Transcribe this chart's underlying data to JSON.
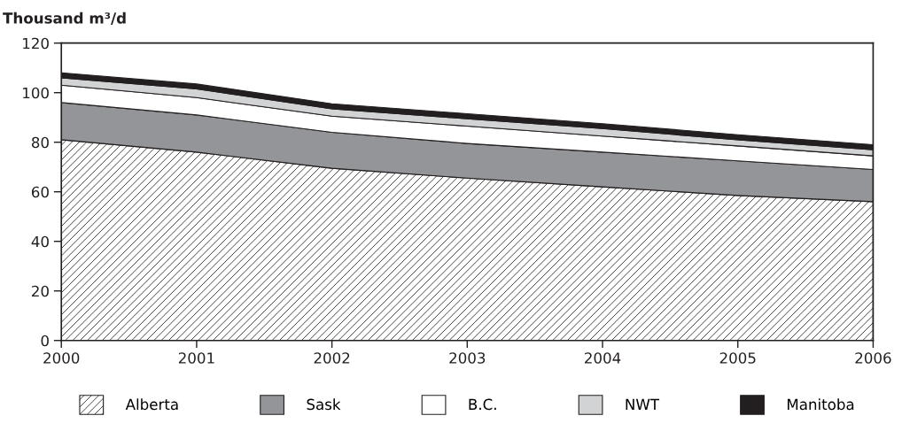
{
  "chart_data": {
    "type": "area",
    "stacked": true,
    "ylabel": "Thousand m³/d",
    "x": [
      2000,
      2001,
      2002,
      2003,
      2004,
      2005,
      2006
    ],
    "xlim": [
      2000,
      2006
    ],
    "xticks": [
      2000,
      2001,
      2002,
      2003,
      2004,
      2005,
      2006
    ],
    "ylim": [
      0,
      120
    ],
    "yticks": [
      0,
      20,
      40,
      60,
      80,
      100,
      120
    ],
    "grid": false,
    "legend": "bottom",
    "series": [
      {
        "name": "Alberta",
        "color": "#231f20",
        "values": [
          81,
          76,
          69.5,
          65.5,
          62,
          58.5,
          56
        ]
      },
      {
        "name": "Sask",
        "color": "#939598",
        "values": [
          15,
          15,
          14.5,
          14,
          14,
          14,
          13
        ]
      },
      {
        "name": "B.C.",
        "color": "#ffffff",
        "values": [
          7,
          7,
          6.5,
          7,
          6.5,
          6,
          5.5
        ]
      },
      {
        "name": "NWT",
        "color": "#d1d3d4",
        "values": [
          3,
          3.5,
          3,
          3,
          3,
          2.5,
          2.5
        ]
      },
      {
        "name": "Manitoba",
        "color": "#231f20",
        "values": [
          2,
          2,
          2,
          2,
          2,
          2,
          2
        ]
      }
    ]
  }
}
